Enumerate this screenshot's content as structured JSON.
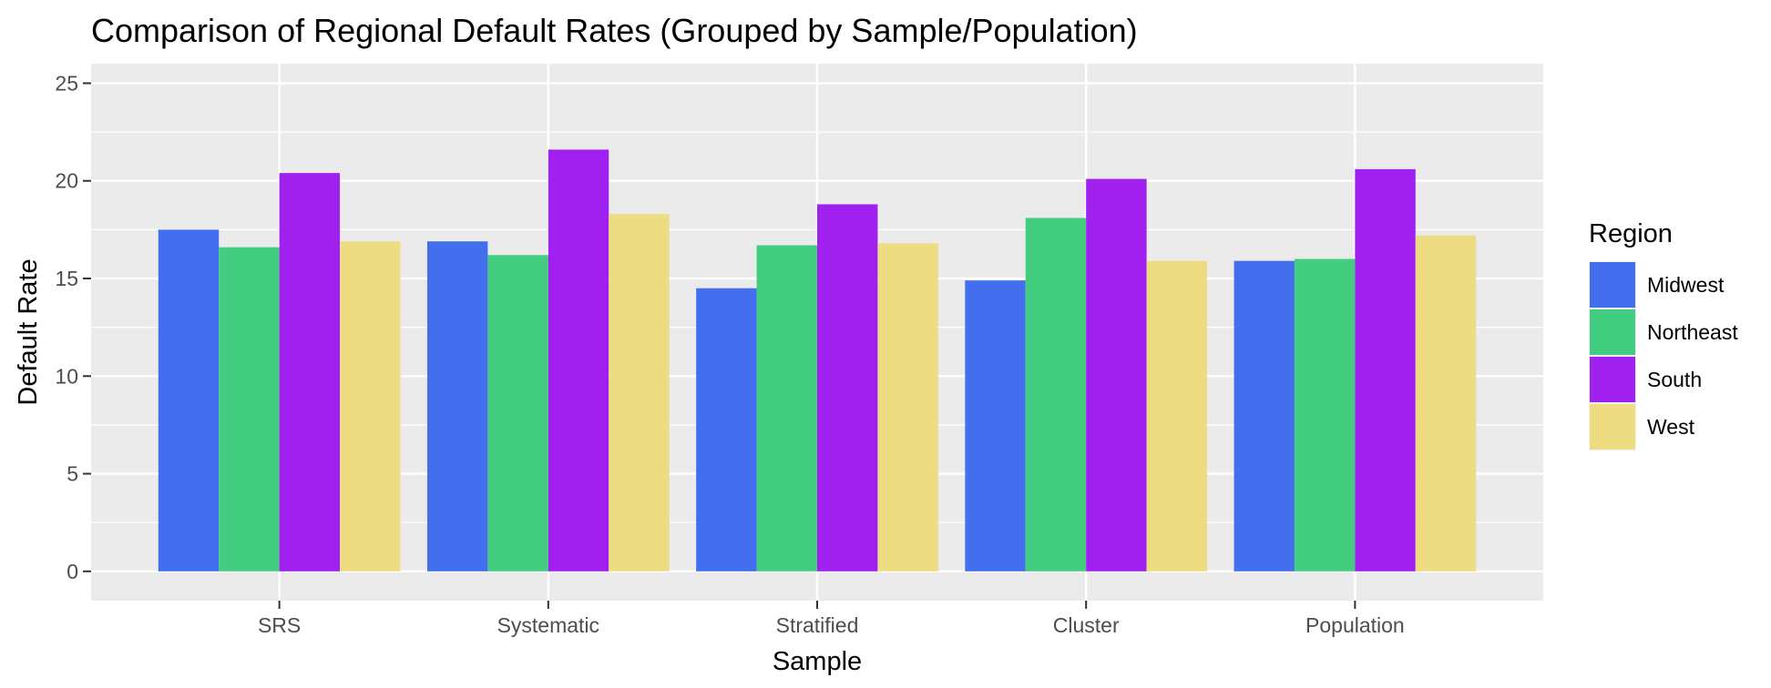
{
  "chart_data": {
    "type": "bar",
    "title": "Comparison of Regional Default Rates (Grouped by Sample/Population)",
    "xlabel": "Sample",
    "ylabel": "Default Rate",
    "categories": [
      "SRS",
      "Systematic",
      "Stratified",
      "Cluster",
      "Population"
    ],
    "ylim": [
      -1.5,
      26
    ],
    "yticks": [
      0,
      5,
      10,
      15,
      20,
      25
    ],
    "grid": true,
    "legend": {
      "title": "Region",
      "position": "right"
    },
    "series": [
      {
        "name": "Midwest",
        "color": "#436EEE",
        "values": [
          17.5,
          16.9,
          14.5,
          14.9,
          15.9
        ]
      },
      {
        "name": "Northeast",
        "color": "#43CD80",
        "values": [
          16.6,
          16.2,
          16.7,
          18.1,
          16.0
        ]
      },
      {
        "name": "South",
        "color": "#A020F0",
        "values": [
          20.4,
          21.6,
          18.8,
          20.1,
          20.6
        ]
      },
      {
        "name": "West",
        "color": "#EEDC82",
        "values": [
          16.9,
          18.3,
          16.8,
          15.9,
          17.2
        ]
      }
    ]
  }
}
